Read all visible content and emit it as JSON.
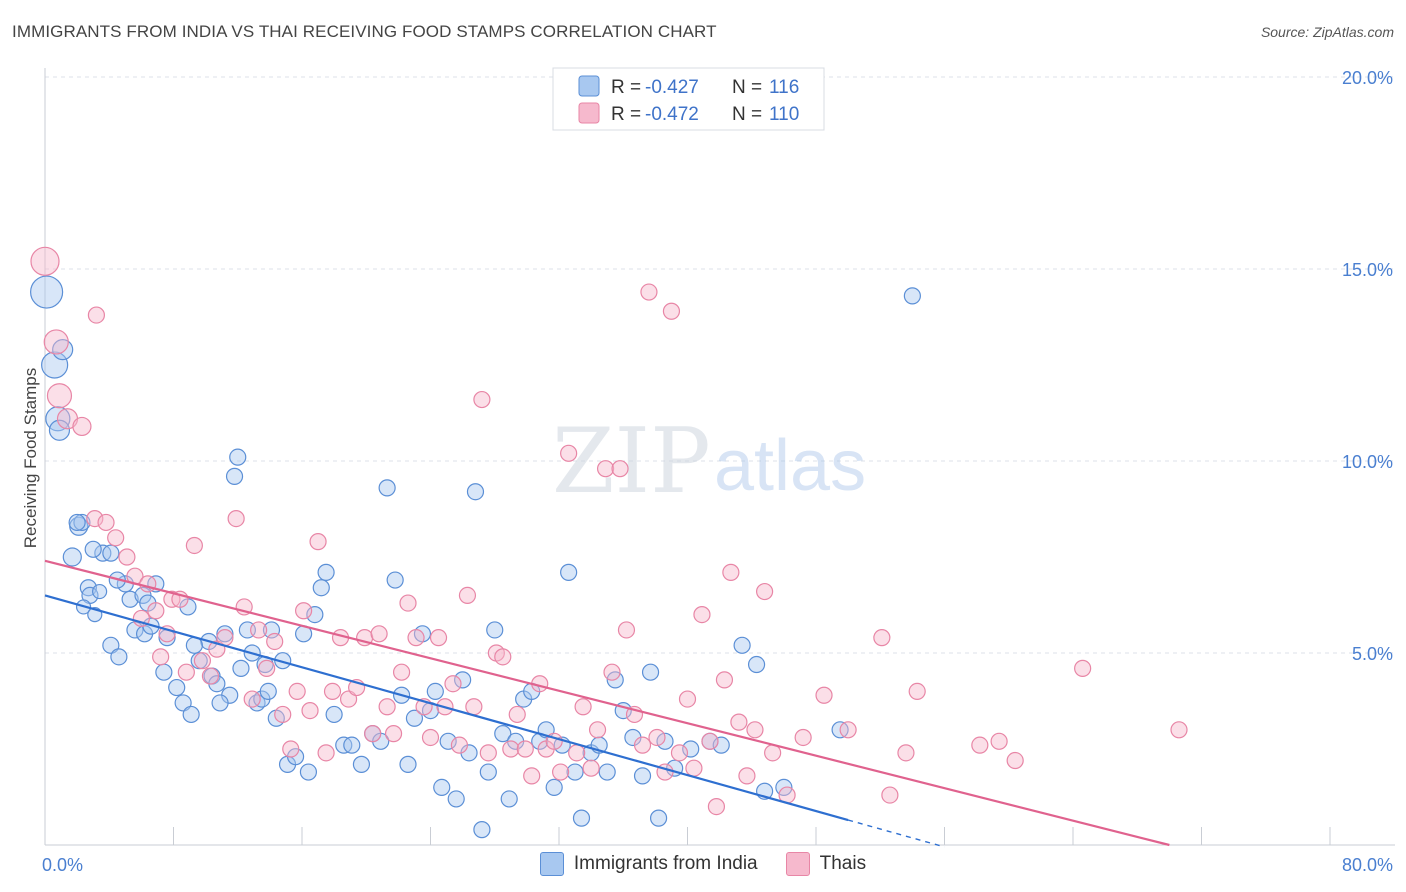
{
  "title": "IMMIGRANTS FROM INDIA VS THAI RECEIVING FOOD STAMPS CORRELATION CHART",
  "source": "Source: ZipAtlas.com",
  "watermark": {
    "zip": "ZIP",
    "atlas": "atlas"
  },
  "legend_box": {
    "rows": [
      {
        "r_label": "R =",
        "r_value": "-0.427",
        "n_label": "N =",
        "n_value": "116"
      },
      {
        "r_label": "R =",
        "r_value": "-0.472",
        "n_label": "N =",
        "n_value": "110"
      }
    ]
  },
  "bottom_legend": {
    "india": "Immigrants from India",
    "thai": "Thais"
  },
  "colors": {
    "india_fill": "#a8c8f0",
    "india_stroke": "#5b8fd6",
    "india_line": "#2e6fd0",
    "thai_fill": "#f6b9cd",
    "thai_stroke": "#e886a6",
    "thai_line": "#e0628e",
    "tick_text": "#4a7fd0",
    "grid": "#dde1e8"
  },
  "chart_data": {
    "type": "scatter",
    "title": "IMMIGRANTS FROM INDIA VS THAI RECEIVING FOOD STAMPS CORRELATION CHART",
    "xlabel": "",
    "ylabel": "Receiving Food Stamps",
    "xlim": [
      0,
      80
    ],
    "ylim": [
      0,
      20
    ],
    "x_tick_labels": [
      "0.0%",
      "80.0%"
    ],
    "y_ticks": [
      5,
      10,
      15,
      20
    ],
    "y_tick_labels": [
      "5.0%",
      "10.0%",
      "15.0%",
      "20.0%"
    ],
    "grid": true,
    "legend_position": "top-center",
    "series": [
      {
        "name": "Immigrants from India",
        "R": -0.427,
        "N": 116,
        "trend": {
          "x": [
            0,
            50
          ],
          "y": [
            6.5,
            0.65
          ],
          "dashed_extension": {
            "x": [
              50,
              56
            ],
            "y": [
              0.65,
              -0.05
            ]
          }
        },
        "points": [
          [
            0.1,
            14.4,
            16
          ],
          [
            0.6,
            12.5,
            13
          ],
          [
            1.1,
            12.9,
            10
          ],
          [
            0.8,
            11.1,
            12
          ],
          [
            0.9,
            10.8,
            10
          ],
          [
            2.1,
            8.3,
            9
          ],
          [
            2.3,
            8.4,
            8
          ],
          [
            1.7,
            7.5,
            9
          ],
          [
            3.6,
            7.6,
            8
          ],
          [
            4.1,
            7.6,
            8
          ],
          [
            2.7,
            6.7,
            8
          ],
          [
            2.8,
            6.5,
            8
          ],
          [
            2.4,
            6.2,
            7
          ],
          [
            3.1,
            6.0,
            7
          ],
          [
            3.4,
            6.6,
            7
          ],
          [
            4.1,
            5.2,
            8
          ],
          [
            4.6,
            4.9,
            8
          ],
          [
            5.0,
            6.8,
            8
          ],
          [
            5.3,
            6.4,
            8
          ],
          [
            5.6,
            5.6,
            8
          ],
          [
            6.1,
            6.5,
            8
          ],
          [
            6.2,
            5.5,
            8
          ],
          [
            6.4,
            6.3,
            8
          ],
          [
            6.9,
            6.8,
            8
          ],
          [
            7.4,
            4.5,
            8
          ],
          [
            7.6,
            5.4,
            8
          ],
          [
            8.2,
            4.1,
            8
          ],
          [
            8.6,
            3.7,
            8
          ],
          [
            8.9,
            6.2,
            8
          ],
          [
            9.1,
            3.4,
            8
          ],
          [
            9.6,
            4.8,
            8
          ],
          [
            10.2,
            5.3,
            8
          ],
          [
            10.4,
            4.4,
            8
          ],
          [
            10.7,
            4.2,
            8
          ],
          [
            11.2,
            5.5,
            8
          ],
          [
            11.5,
            3.9,
            8
          ],
          [
            11.8,
            9.6,
            8
          ],
          [
            12.0,
            10.1,
            8
          ],
          [
            12.6,
            5.6,
            8
          ],
          [
            12.9,
            5.0,
            8
          ],
          [
            13.2,
            3.7,
            8
          ],
          [
            13.5,
            3.8,
            8
          ],
          [
            13.9,
            4.0,
            8
          ],
          [
            14.1,
            5.6,
            8
          ],
          [
            14.4,
            3.3,
            8
          ],
          [
            14.8,
            4.8,
            8
          ],
          [
            15.1,
            2.1,
            8
          ],
          [
            15.6,
            2.3,
            8
          ],
          [
            16.1,
            5.5,
            8
          ],
          [
            16.4,
            1.9,
            8
          ],
          [
            16.8,
            6.0,
            8
          ],
          [
            17.2,
            6.7,
            8
          ],
          [
            17.5,
            7.1,
            8
          ],
          [
            18.0,
            3.4,
            8
          ],
          [
            18.6,
            2.6,
            8
          ],
          [
            19.1,
            2.6,
            8
          ],
          [
            19.7,
            2.1,
            8
          ],
          [
            20.4,
            2.9,
            8
          ],
          [
            20.9,
            2.7,
            8
          ],
          [
            21.3,
            9.3,
            8
          ],
          [
            21.8,
            6.9,
            8
          ],
          [
            22.2,
            3.9,
            8
          ],
          [
            22.6,
            2.1,
            8
          ],
          [
            23.0,
            3.3,
            8
          ],
          [
            23.5,
            5.5,
            8
          ],
          [
            24.0,
            3.5,
            8
          ],
          [
            24.3,
            4.0,
            8
          ],
          [
            24.7,
            1.5,
            8
          ],
          [
            25.1,
            2.7,
            8
          ],
          [
            25.6,
            1.2,
            8
          ],
          [
            26.0,
            4.3,
            8
          ],
          [
            26.4,
            2.4,
            8
          ],
          [
            26.8,
            9.2,
            8
          ],
          [
            27.2,
            0.4,
            8
          ],
          [
            27.6,
            1.9,
            8
          ],
          [
            28.0,
            5.6,
            8
          ],
          [
            28.5,
            2.9,
            8
          ],
          [
            28.9,
            1.2,
            8
          ],
          [
            29.3,
            2.7,
            8
          ],
          [
            29.8,
            3.8,
            8
          ],
          [
            30.3,
            4.0,
            8
          ],
          [
            30.8,
            2.7,
            8
          ],
          [
            31.2,
            3.0,
            8
          ],
          [
            31.7,
            1.5,
            8
          ],
          [
            32.2,
            2.6,
            8
          ],
          [
            32.6,
            7.1,
            8
          ],
          [
            33.0,
            1.9,
            8
          ],
          [
            33.4,
            0.7,
            8
          ],
          [
            34.0,
            2.4,
            8
          ],
          [
            34.5,
            2.6,
            8
          ],
          [
            35.0,
            1.9,
            8
          ],
          [
            35.5,
            4.3,
            8
          ],
          [
            36.0,
            3.5,
            8
          ],
          [
            36.6,
            2.8,
            8
          ],
          [
            37.2,
            1.8,
            8
          ],
          [
            37.7,
            4.5,
            8
          ],
          [
            38.2,
            0.7,
            8
          ],
          [
            38.6,
            2.7,
            8
          ],
          [
            39.2,
            2.0,
            8
          ],
          [
            40.2,
            2.5,
            8
          ],
          [
            41.4,
            2.7,
            8
          ],
          [
            42.1,
            2.6,
            8
          ],
          [
            43.4,
            5.2,
            8
          ],
          [
            44.3,
            4.7,
            8
          ],
          [
            44.8,
            1.4,
            8
          ],
          [
            46.0,
            1.5,
            8
          ],
          [
            49.5,
            3.0,
            8
          ],
          [
            54.0,
            14.3,
            8
          ],
          [
            2.0,
            8.4,
            8
          ],
          [
            3.0,
            7.7,
            8
          ],
          [
            4.5,
            6.9,
            8
          ],
          [
            6.6,
            5.7,
            8
          ],
          [
            9.3,
            5.2,
            8
          ],
          [
            10.9,
            3.7,
            8
          ],
          [
            12.2,
            4.6,
            8
          ],
          [
            13.7,
            4.7,
            8
          ]
        ]
      },
      {
        "name": "Thais",
        "R": -0.472,
        "N": 110,
        "trend": {
          "x": [
            0,
            70
          ],
          "y": [
            7.4,
            0.0
          ]
        },
        "points": [
          [
            0.0,
            15.2,
            14
          ],
          [
            0.7,
            13.1,
            12
          ],
          [
            0.9,
            11.7,
            12
          ],
          [
            1.4,
            11.1,
            10
          ],
          [
            2.3,
            10.9,
            9
          ],
          [
            3.2,
            13.8,
            8
          ],
          [
            3.1,
            8.5,
            8
          ],
          [
            3.8,
            8.4,
            8
          ],
          [
            4.4,
            8.0,
            8
          ],
          [
            5.1,
            7.5,
            8
          ],
          [
            5.6,
            7.0,
            8
          ],
          [
            6.0,
            5.9,
            8
          ],
          [
            6.4,
            6.8,
            8
          ],
          [
            6.9,
            6.1,
            8
          ],
          [
            7.2,
            4.9,
            8
          ],
          [
            7.6,
            5.5,
            8
          ],
          [
            7.9,
            6.4,
            8
          ],
          [
            8.4,
            6.4,
            8
          ],
          [
            8.8,
            4.5,
            8
          ],
          [
            9.3,
            7.8,
            8
          ],
          [
            9.8,
            4.8,
            8
          ],
          [
            10.3,
            4.4,
            8
          ],
          [
            10.7,
            5.1,
            8
          ],
          [
            11.2,
            5.4,
            8
          ],
          [
            11.9,
            8.5,
            8
          ],
          [
            12.4,
            6.2,
            8
          ],
          [
            12.9,
            3.8,
            8
          ],
          [
            13.3,
            5.6,
            8
          ],
          [
            13.8,
            4.6,
            8
          ],
          [
            14.3,
            5.3,
            8
          ],
          [
            14.8,
            3.4,
            8
          ],
          [
            15.3,
            2.5,
            8
          ],
          [
            15.7,
            4.0,
            8
          ],
          [
            16.1,
            6.1,
            8
          ],
          [
            16.5,
            3.5,
            8
          ],
          [
            17.0,
            7.9,
            8
          ],
          [
            17.5,
            2.4,
            8
          ],
          [
            17.9,
            4.0,
            8
          ],
          [
            18.4,
            5.4,
            8
          ],
          [
            18.9,
            3.8,
            8
          ],
          [
            19.4,
            4.1,
            8
          ],
          [
            19.9,
            5.4,
            8
          ],
          [
            20.4,
            2.9,
            8
          ],
          [
            20.8,
            5.5,
            8
          ],
          [
            21.3,
            3.6,
            8
          ],
          [
            21.7,
            2.9,
            8
          ],
          [
            22.2,
            4.5,
            8
          ],
          [
            22.6,
            6.3,
            8
          ],
          [
            23.1,
            5.4,
            8
          ],
          [
            23.6,
            3.6,
            8
          ],
          [
            24.0,
            2.8,
            8
          ],
          [
            24.5,
            5.4,
            8
          ],
          [
            24.9,
            3.6,
            8
          ],
          [
            25.4,
            4.2,
            8
          ],
          [
            25.8,
            2.6,
            8
          ],
          [
            26.3,
            6.5,
            8
          ],
          [
            26.7,
            3.6,
            8
          ],
          [
            27.2,
            11.6,
            8
          ],
          [
            27.6,
            2.4,
            8
          ],
          [
            28.1,
            5.0,
            8
          ],
          [
            28.5,
            4.9,
            8
          ],
          [
            29.0,
            2.5,
            8
          ],
          [
            29.4,
            3.4,
            8
          ],
          [
            29.9,
            2.5,
            8
          ],
          [
            30.3,
            1.8,
            8
          ],
          [
            30.8,
            4.2,
            8
          ],
          [
            31.2,
            2.5,
            8
          ],
          [
            31.7,
            2.7,
            8
          ],
          [
            32.1,
            1.9,
            8
          ],
          [
            32.6,
            10.2,
            8
          ],
          [
            33.1,
            2.4,
            8
          ],
          [
            33.5,
            3.6,
            8
          ],
          [
            34.0,
            2.0,
            8
          ],
          [
            34.4,
            3.0,
            8
          ],
          [
            34.9,
            9.8,
            8
          ],
          [
            35.3,
            4.5,
            8
          ],
          [
            35.8,
            9.8,
            8
          ],
          [
            36.2,
            5.6,
            8
          ],
          [
            36.7,
            3.4,
            8
          ],
          [
            37.2,
            2.6,
            8
          ],
          [
            37.6,
            14.4,
            8
          ],
          [
            38.1,
            2.8,
            8
          ],
          [
            38.6,
            1.9,
            8
          ],
          [
            39.0,
            13.9,
            8
          ],
          [
            39.5,
            2.4,
            8
          ],
          [
            40.0,
            3.8,
            8
          ],
          [
            40.4,
            2.0,
            8
          ],
          [
            40.9,
            6.0,
            8
          ],
          [
            41.4,
            2.7,
            8
          ],
          [
            41.8,
            1.0,
            8
          ],
          [
            42.3,
            4.3,
            8
          ],
          [
            42.7,
            7.1,
            8
          ],
          [
            43.2,
            3.2,
            8
          ],
          [
            43.7,
            1.8,
            8
          ],
          [
            44.2,
            3.0,
            8
          ],
          [
            44.8,
            6.6,
            8
          ],
          [
            45.3,
            2.4,
            8
          ],
          [
            46.2,
            1.3,
            8
          ],
          [
            47.2,
            2.8,
            8
          ],
          [
            48.5,
            3.9,
            8
          ],
          [
            50.0,
            3.0,
            8
          ],
          [
            52.1,
            5.4,
            8
          ],
          [
            53.6,
            2.4,
            8
          ],
          [
            54.3,
            4.0,
            8
          ],
          [
            58.2,
            2.6,
            8
          ],
          [
            60.4,
            2.2,
            8
          ],
          [
            64.6,
            4.6,
            8
          ],
          [
            70.6,
            3.0,
            8
          ],
          [
            52.6,
            1.3,
            8
          ],
          [
            59.4,
            2.7,
            8
          ]
        ]
      }
    ]
  }
}
